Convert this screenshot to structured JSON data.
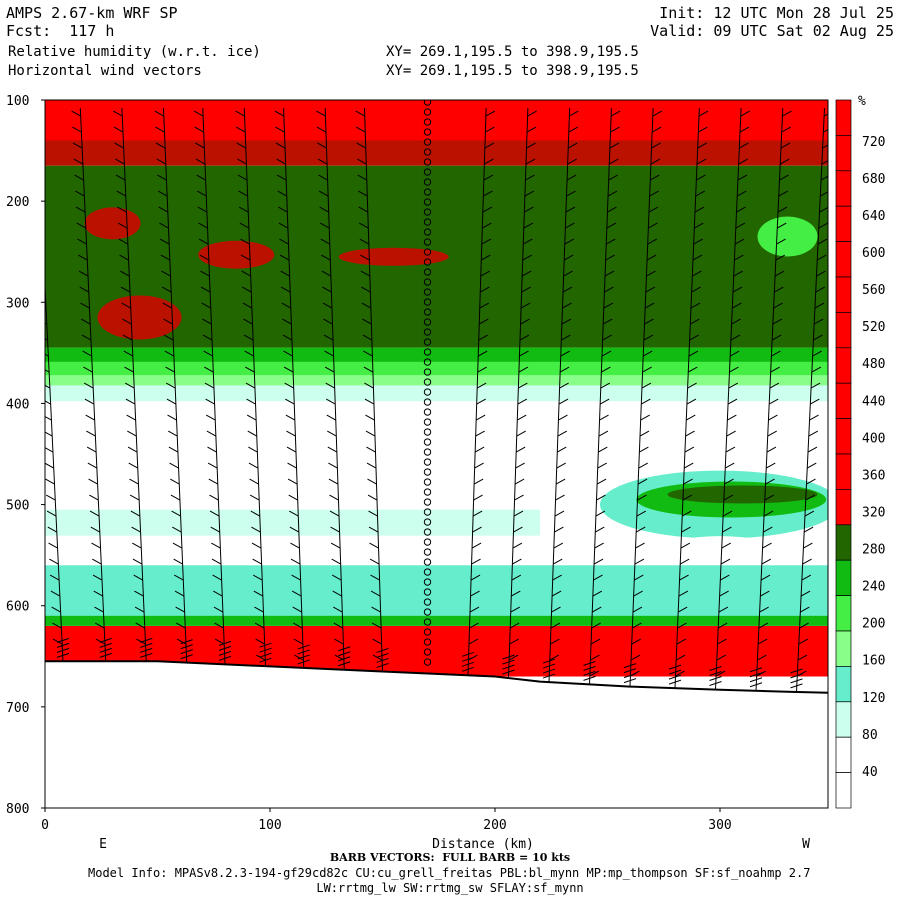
{
  "header": {
    "model": "AMPS 2.67-km WRF SP",
    "fcst": "Fcst:  117 h",
    "field1": "Relative humidity (w.r.t. ice)",
    "field2": "Horizontal wind vectors",
    "xy1": "XY= 269.1,195.5 to 398.9,195.5",
    "xy2": "XY= 269.1,195.5 to 398.9,195.5",
    "init": "Init: 12 UTC Mon 28 Jul 25",
    "valid": "Valid: 09 UTC Sat 02 Aug 25"
  },
  "footer": {
    "barb_note": "BARB VECTORS:  FULL BARB = 10 kts",
    "model_info": "Model Info: MPASv8.2.3-194-gf29cd82c CU:cu_grell_freitas PBL:bl_mynn MP:mp_thompson SF:sf_noahmp 2.7",
    "model_info2": "LW:rrtmg_lw SW:rrtmg_sw SFLAY:sf_mynn"
  },
  "chart_data": {
    "type": "heatmap",
    "title": "Relative humidity (w.r.t. ice)",
    "xlabel": "Distance (km)",
    "ylabel": "",
    "xlim": [
      0,
      348
    ],
    "ylim": [
      800,
      100
    ],
    "x_ticks": [
      0,
      100,
      200,
      300
    ],
    "y_ticks": [
      100,
      200,
      300,
      400,
      500,
      600,
      700,
      800
    ],
    "x_end_labels": [
      "E",
      "W"
    ],
    "colorbar": {
      "unit": "%",
      "labels": [
        40,
        80,
        120,
        160,
        200,
        240,
        280,
        320,
        360,
        400,
        440,
        480,
        520,
        560,
        600,
        640,
        680,
        720
      ],
      "colors": [
        "#ffffff",
        "#ffffff",
        "#ccffee",
        "#66eecc",
        "#88ff88",
        "#44ee44",
        "#11bb11",
        "#226600",
        "#ff0000",
        "#ff0000",
        "#ff0000",
        "#ff0000",
        "#ff0000",
        "#ff0000",
        "#ff0000",
        "#ff0000",
        "#ff0000",
        "#ff0000",
        "#ff0000",
        "#ff0000"
      ]
    },
    "layers": [
      {
        "name": "upper-red",
        "from_p": 100,
        "to_p": 150,
        "color": "#ff0000"
      },
      {
        "name": "dark-red-band",
        "from_p": 140,
        "to_p": 165,
        "color": "#bb1100"
      },
      {
        "name": "upper-green",
        "from_p": 165,
        "to_p": 345,
        "color": "#226600"
      },
      {
        "name": "mid-moist",
        "from_p": 345,
        "to_p": 385,
        "color": "#44ee44"
      },
      {
        "name": "mid-dry",
        "from_p": 385,
        "to_p": 560,
        "color": "#ffffff"
      },
      {
        "name": "low-moist",
        "from_p": 560,
        "to_p": 620,
        "color": "#66eecc"
      },
      {
        "name": "bottom-red",
        "from_p": 620,
        "to_p": 670,
        "color": "#ff0000"
      }
    ],
    "terrain_p": [
      655,
      655,
      660,
      665,
      670,
      675,
      680,
      683,
      685,
      686
    ],
    "terrain_x": [
      0,
      50,
      100,
      150,
      200,
      220,
      260,
      300,
      330,
      348
    ],
    "barb_columns_x": [
      8,
      27,
      45,
      63,
      80,
      98,
      115,
      133,
      150,
      170,
      188,
      206,
      224,
      242,
      260,
      280,
      298,
      316,
      334
    ]
  }
}
